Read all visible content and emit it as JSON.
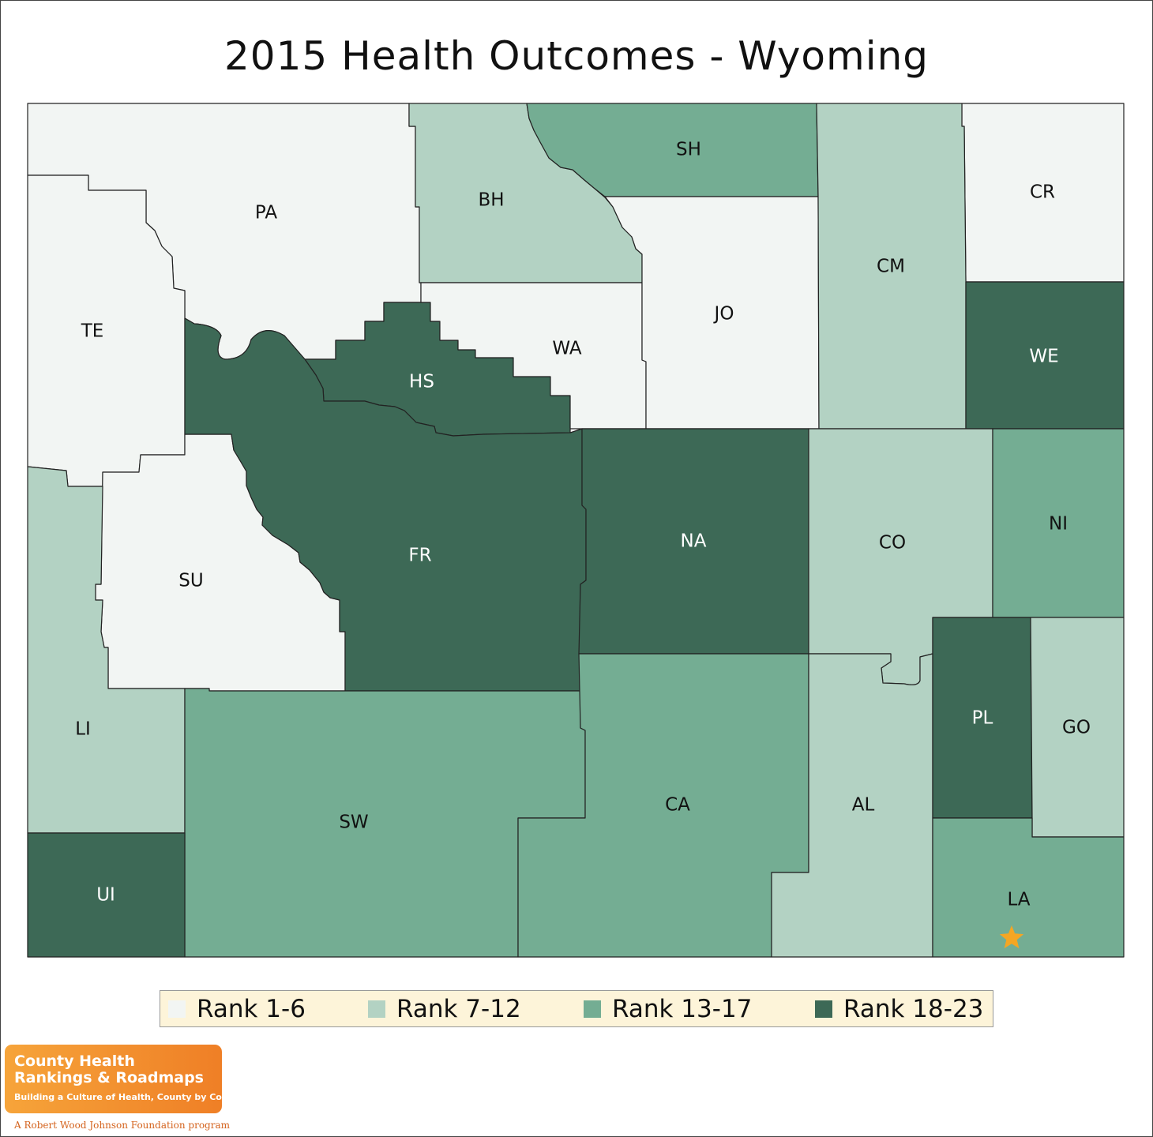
{
  "title": "2015 Health Outcomes - Wyoming",
  "map": {
    "ranks": {
      "r1": {
        "label": "Rank 1-6",
        "color": "#f2f5f3"
      },
      "r2": {
        "label": "Rank 7-12",
        "color": "#b3d2c3"
      },
      "r3": {
        "label": "Rank 13-17",
        "color": "#74ad93"
      },
      "r4": {
        "label": "Rank 18-23",
        "color": "#3d6956"
      }
    },
    "counties": [
      {
        "id": "PA",
        "label": "PA",
        "rank": "r1"
      },
      {
        "id": "BH",
        "label": "BH",
        "rank": "r2"
      },
      {
        "id": "SH",
        "label": "SH",
        "rank": "r3"
      },
      {
        "id": "CR",
        "label": "CR",
        "rank": "r1"
      },
      {
        "id": "TE",
        "label": "TE",
        "rank": "r1"
      },
      {
        "id": "HS",
        "label": "HS",
        "rank": "r4"
      },
      {
        "id": "WA",
        "label": "WA",
        "rank": "r1"
      },
      {
        "id": "JO",
        "label": "JO",
        "rank": "r1"
      },
      {
        "id": "CM",
        "label": "CM",
        "rank": "r2"
      },
      {
        "id": "WE",
        "label": "WE",
        "rank": "r4"
      },
      {
        "id": "SU",
        "label": "SU",
        "rank": "r1"
      },
      {
        "id": "FR",
        "label": "FR",
        "rank": "r4"
      },
      {
        "id": "NA",
        "label": "NA",
        "rank": "r4"
      },
      {
        "id": "CO",
        "label": "CO",
        "rank": "r2"
      },
      {
        "id": "NI",
        "label": "NI",
        "rank": "r3"
      },
      {
        "id": "LI",
        "label": "LI",
        "rank": "r2"
      },
      {
        "id": "SW",
        "label": "SW",
        "rank": "r3"
      },
      {
        "id": "CA",
        "label": "CA",
        "rank": "r3"
      },
      {
        "id": "AL",
        "label": "AL",
        "rank": "r2"
      },
      {
        "id": "PL",
        "label": "PL",
        "rank": "r4"
      },
      {
        "id": "GO",
        "label": "GO",
        "rank": "r2"
      },
      {
        "id": "UI",
        "label": "UI",
        "rank": "r4"
      },
      {
        "id": "LA",
        "label": "LA",
        "rank": "r3"
      }
    ],
    "star_marker": {
      "county": "LA",
      "color": "#f5a623"
    }
  },
  "legend": [
    {
      "label": "Rank 1-6",
      "color": "#f2f5f3"
    },
    {
      "label": "Rank 7-12",
      "color": "#b3d2c3"
    },
    {
      "label": "Rank 13-17",
      "color": "#74ad93"
    },
    {
      "label": "Rank 18-23",
      "color": "#3d6956"
    }
  ],
  "logo": {
    "line1": "County Health",
    "line2": "Rankings & Roadmaps",
    "tagline": "Building a Culture of Health, County by County",
    "sub": "A Robert Wood Johnson Foundation program",
    "icon": "chr-logo-icon"
  }
}
